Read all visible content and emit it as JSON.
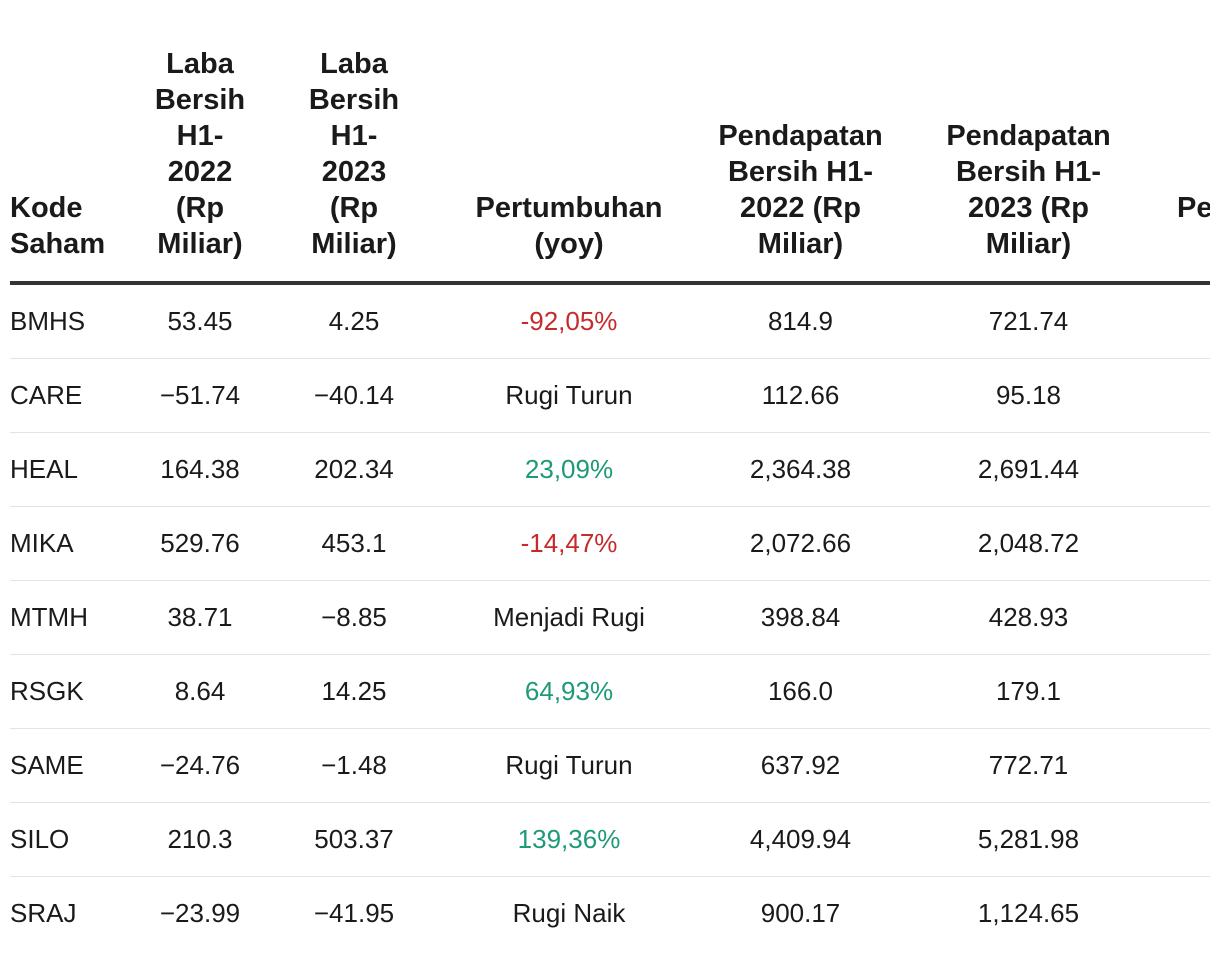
{
  "headers": {
    "kode": "Kode Saham",
    "laba_2022": "Laba Bersih H1- 2022 (Rp Miliar)",
    "laba_2023": "Laba Bersih H1- 2023 (Rp Miliar)",
    "pertumbuhan": "Pertumbuhan (yoy)",
    "pendapatan_2022": "Pendapatan Bersih H1- 2022 (Rp Miliar)",
    "pendapatan_2023": "Pendapatan Bersih H1- 2023 (Rp Miliar)",
    "extra": "Pe"
  },
  "rows": [
    {
      "kode": "BMHS",
      "laba_2022": "53.45",
      "laba_2023": "4.25",
      "pertumbuhan": "-92,05%",
      "status": "neg",
      "pend_2022": "814.9",
      "pend_2023": "721.74"
    },
    {
      "kode": "CARE",
      "laba_2022": "−51.74",
      "laba_2023": "−40.14",
      "pertumbuhan": "Rugi Turun",
      "status": "neutral",
      "pend_2022": "112.66",
      "pend_2023": "95.18"
    },
    {
      "kode": "HEAL",
      "laba_2022": "164.38",
      "laba_2023": "202.34",
      "pertumbuhan": "23,09%",
      "status": "pos",
      "pend_2022": "2,364.38",
      "pend_2023": "2,691.44"
    },
    {
      "kode": "MIKA",
      "laba_2022": "529.76",
      "laba_2023": "453.1",
      "pertumbuhan": "-14,47%",
      "status": "neg",
      "pend_2022": "2,072.66",
      "pend_2023": "2,048.72"
    },
    {
      "kode": "MTMH",
      "laba_2022": "38.71",
      "laba_2023": "−8.85",
      "pertumbuhan": "Menjadi Rugi",
      "status": "neutral",
      "pend_2022": "398.84",
      "pend_2023": "428.93"
    },
    {
      "kode": "RSGK",
      "laba_2022": "8.64",
      "laba_2023": "14.25",
      "pertumbuhan": "64,93%",
      "status": "pos",
      "pend_2022": "166.0",
      "pend_2023": "179.1"
    },
    {
      "kode": "SAME",
      "laba_2022": "−24.76",
      "laba_2023": "−1.48",
      "pertumbuhan": "Rugi Turun",
      "status": "neutral",
      "pend_2022": "637.92",
      "pend_2023": "772.71"
    },
    {
      "kode": "SILO",
      "laba_2022": "210.3",
      "laba_2023": "503.37",
      "pertumbuhan": "139,36%",
      "status": "pos",
      "pend_2022": "4,409.94",
      "pend_2023": "5,281.98"
    },
    {
      "kode": "SRAJ",
      "laba_2022": "−23.99",
      "laba_2023": "−41.95",
      "pertumbuhan": "Rugi Naik",
      "status": "neutral",
      "pend_2022": "900.17",
      "pend_2023": "1,124.65"
    }
  ],
  "colors": {
    "negative": "#c62b2b",
    "positive": "#1f9a78",
    "text": "#1a1a1a",
    "header_rule": "#333333"
  }
}
